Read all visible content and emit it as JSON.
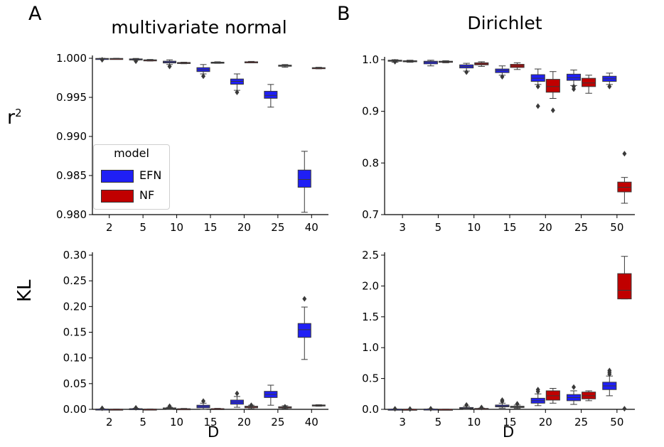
{
  "panel_labels": {
    "a": "A",
    "b": "B"
  },
  "column_titles": {
    "left": "multivariate normal",
    "right": "Dirichlet"
  },
  "row_labels": {
    "top": "r",
    "top_sup": "2",
    "bottom": "KL"
  },
  "x_label": "D",
  "legend": {
    "title": "model",
    "entries": [
      {
        "label": "EFN",
        "color": "#1f1ff5"
      },
      {
        "label": "NF",
        "color": "#c00000"
      }
    ]
  },
  "colors": {
    "efn": "#1f1ff5",
    "nf": "#c00000"
  },
  "chart_data": [
    {
      "id": "mvn_r2",
      "type": "box",
      "title": "multivariate normal",
      "xlabel": "",
      "ylabel": "r2",
      "categories": [
        "2",
        "5",
        "10",
        "15",
        "20",
        "25",
        "40"
      ],
      "ylim": [
        0.98,
        1.0
      ],
      "yticks": [
        0.98,
        0.985,
        0.99,
        0.995,
        1.0
      ],
      "ytick_labels": [
        "0.980",
        "0.985",
        "0.990",
        "0.995",
        "1.000"
      ],
      "series": [
        {
          "name": "EFN",
          "boxes": [
            {
              "cat": "2",
              "q1": 0.99993,
              "med": 0.99996,
              "q3": 0.99998,
              "lo": 0.99988,
              "hi": 1.0,
              "fliers": [
                0.99981
              ]
            },
            {
              "cat": "5",
              "q1": 0.99984,
              "med": 0.99988,
              "q3": 0.99992,
              "lo": 0.99975,
              "hi": 0.99998,
              "fliers": [
                0.99962
              ]
            },
            {
              "cat": "10",
              "q1": 0.9994,
              "med": 0.99952,
              "q3": 0.99963,
              "lo": 0.9992,
              "hi": 0.9998,
              "fliers": [
                0.99895
              ]
            },
            {
              "cat": "15",
              "q1": 0.9983,
              "med": 0.99855,
              "q3": 0.9988,
              "lo": 0.998,
              "hi": 0.9992,
              "fliers": [
                0.9977
              ]
            },
            {
              "cat": "20",
              "q1": 0.99668,
              "med": 0.99705,
              "q3": 0.99735,
              "lo": 0.9959,
              "hi": 0.998,
              "fliers": [
                0.99565
              ]
            },
            {
              "cat": "25",
              "q1": 0.99488,
              "med": 0.99525,
              "q3": 0.99578,
              "lo": 0.99375,
              "hi": 0.99665,
              "fliers": []
            },
            {
              "cat": "40",
              "q1": 0.9835,
              "med": 0.9845,
              "q3": 0.9857,
              "lo": 0.9803,
              "hi": 0.9881,
              "fliers": []
            }
          ]
        },
        {
          "name": "NF",
          "boxes": [
            {
              "cat": "2",
              "q1": 0.99994,
              "med": 0.99996,
              "q3": 0.99998,
              "lo": 0.9999,
              "hi": 1.0,
              "fliers": []
            },
            {
              "cat": "5",
              "q1": 0.99972,
              "med": 0.99976,
              "q3": 0.9998,
              "lo": 0.99965,
              "hi": 0.99985,
              "fliers": []
            },
            {
              "cat": "10",
              "q1": 0.99938,
              "med": 0.99942,
              "q3": 0.99946,
              "lo": 0.9993,
              "hi": 0.9995,
              "fliers": []
            },
            {
              "cat": "15",
              "q1": 0.99942,
              "med": 0.99946,
              "q3": 0.9995,
              "lo": 0.99935,
              "hi": 0.99955,
              "fliers": []
            },
            {
              "cat": "20",
              "q1": 0.99948,
              "med": 0.99952,
              "q3": 0.99955,
              "lo": 0.99943,
              "hi": 0.9996,
              "fliers": []
            },
            {
              "cat": "25",
              "q1": 0.99898,
              "med": 0.99905,
              "q3": 0.99912,
              "lo": 0.99885,
              "hi": 0.9992,
              "fliers": []
            },
            {
              "cat": "40",
              "q1": 0.99872,
              "med": 0.99876,
              "q3": 0.9988,
              "lo": 0.99865,
              "hi": 0.99885,
              "fliers": []
            }
          ]
        }
      ]
    },
    {
      "id": "dir_r2",
      "type": "box",
      "title": "Dirichlet",
      "xlabel": "",
      "ylabel": "",
      "categories": [
        "3",
        "5",
        "10",
        "15",
        "20",
        "25",
        "50"
      ],
      "ylim": [
        0.7,
        1.0
      ],
      "yticks": [
        0.7,
        0.8,
        0.9,
        1.0
      ],
      "ytick_labels": [
        "0.7",
        "0.8",
        "0.9",
        "1.0"
      ],
      "series": [
        {
          "name": "EFN",
          "boxes": [
            {
              "cat": "3",
              "q1": 0.997,
              "med": 0.998,
              "q3": 0.999,
              "lo": 0.995,
              "hi": 1.0,
              "fliers": [
                0.996
              ]
            },
            {
              "cat": "5",
              "q1": 0.992,
              "med": 0.995,
              "q3": 0.997,
              "lo": 0.988,
              "hi": 0.999,
              "fliers": []
            },
            {
              "cat": "10",
              "q1": 0.984,
              "med": 0.987,
              "q3": 0.99,
              "lo": 0.978,
              "hi": 0.993,
              "fliers": [
                0.976
              ]
            },
            {
              "cat": "15",
              "q1": 0.975,
              "med": 0.979,
              "q3": 0.982,
              "lo": 0.97,
              "hi": 0.988,
              "fliers": [
                0.967
              ]
            },
            {
              "cat": "20",
              "q1": 0.958,
              "med": 0.964,
              "q3": 0.971,
              "lo": 0.952,
              "hi": 0.982,
              "fliers": [
                0.948,
                0.91
              ]
            },
            {
              "cat": "25",
              "q1": 0.96,
              "med": 0.965,
              "q3": 0.972,
              "lo": 0.95,
              "hi": 0.98,
              "fliers": [
                0.948,
                0.943
              ]
            },
            {
              "cat": "50",
              "q1": 0.958,
              "med": 0.963,
              "q3": 0.968,
              "lo": 0.952,
              "hi": 0.974,
              "fliers": [
                0.948
              ]
            }
          ]
        },
        {
          "name": "NF",
          "boxes": [
            {
              "cat": "3",
              "q1": 0.996,
              "med": 0.997,
              "q3": 0.998,
              "lo": 0.995,
              "hi": 0.999,
              "fliers": []
            },
            {
              "cat": "5",
              "q1": 0.995,
              "med": 0.996,
              "q3": 0.997,
              "lo": 0.994,
              "hi": 0.998,
              "fliers": []
            },
            {
              "cat": "10",
              "q1": 0.99,
              "med": 0.992,
              "q3": 0.994,
              "lo": 0.987,
              "hi": 0.996,
              "fliers": []
            },
            {
              "cat": "15",
              "q1": 0.985,
              "med": 0.988,
              "q3": 0.991,
              "lo": 0.981,
              "hi": 0.994,
              "fliers": []
            },
            {
              "cat": "20",
              "q1": 0.937,
              "med": 0.948,
              "q3": 0.962,
              "lo": 0.925,
              "hi": 0.977,
              "fliers": [
                0.902
              ]
            },
            {
              "cat": "25",
              "q1": 0.948,
              "med": 0.955,
              "q3": 0.964,
              "lo": 0.935,
              "hi": 0.97,
              "fliers": []
            },
            {
              "cat": "50",
              "q1": 0.744,
              "med": 0.753,
              "q3": 0.763,
              "lo": 0.722,
              "hi": 0.772,
              "fliers": [
                0.818
              ]
            }
          ]
        }
      ]
    },
    {
      "id": "mvn_kl",
      "type": "box",
      "title": "",
      "xlabel": "D",
      "ylabel": "KL",
      "categories": [
        "2",
        "5",
        "10",
        "15",
        "20",
        "25",
        "40"
      ],
      "ylim": [
        0.0,
        0.3
      ],
      "yticks": [
        0.0,
        0.05,
        0.1,
        0.15,
        0.2,
        0.25,
        0.3
      ],
      "ytick_labels": [
        "0.00",
        "0.05",
        "0.10",
        "0.15",
        "0.20",
        "0.25",
        "0.30"
      ],
      "series": [
        {
          "name": "EFN",
          "boxes": [
            {
              "cat": "2",
              "q1": 0.0,
              "med": 0.0003,
              "q3": 0.0006,
              "lo": 0.0,
              "hi": 0.001,
              "fliers": [
                0.002
              ]
            },
            {
              "cat": "5",
              "q1": 0.0003,
              "med": 0.0008,
              "q3": 0.0013,
              "lo": 0.0,
              "hi": 0.002,
              "fliers": [
                0.003
              ]
            },
            {
              "cat": "10",
              "q1": 0.0013,
              "med": 0.002,
              "q3": 0.0028,
              "lo": 0.0,
              "hi": 0.004,
              "fliers": [
                0.006
              ]
            },
            {
              "cat": "15",
              "q1": 0.003,
              "med": 0.0055,
              "q3": 0.008,
              "lo": 0.0,
              "hi": 0.012,
              "fliers": [
                0.016
              ]
            },
            {
              "cat": "20",
              "q1": 0.01,
              "med": 0.014,
              "q3": 0.018,
              "lo": 0.004,
              "hi": 0.025,
              "fliers": [
                0.031
              ]
            },
            {
              "cat": "25",
              "q1": 0.023,
              "med": 0.029,
              "q3": 0.035,
              "lo": 0.008,
              "hi": 0.047,
              "fliers": []
            },
            {
              "cat": "40",
              "q1": 0.14,
              "med": 0.155,
              "q3": 0.167,
              "lo": 0.097,
              "hi": 0.199,
              "fliers": [
                0.215
              ]
            }
          ]
        },
        {
          "name": "NF",
          "boxes": [
            {
              "cat": "2",
              "q1": 0.0,
              "med": 0.0002,
              "q3": 0.0004,
              "lo": 0.0,
              "hi": 0.0006,
              "fliers": []
            },
            {
              "cat": "5",
              "q1": 0.0001,
              "med": 0.0003,
              "q3": 0.0005,
              "lo": 0.0,
              "hi": 0.0008,
              "fliers": []
            },
            {
              "cat": "10",
              "q1": 0.0004,
              "med": 0.0008,
              "q3": 0.0012,
              "lo": 0.0,
              "hi": 0.0018,
              "fliers": []
            },
            {
              "cat": "15",
              "q1": 0.0006,
              "med": 0.001,
              "q3": 0.0014,
              "lo": 0.0,
              "hi": 0.002,
              "fliers": []
            },
            {
              "cat": "20",
              "q1": 0.003,
              "med": 0.0045,
              "q3": 0.006,
              "lo": 0.001,
              "hi": 0.008,
              "fliers": [
                0.008
              ]
            },
            {
              "cat": "25",
              "q1": 0.0025,
              "med": 0.004,
              "q3": 0.005,
              "lo": 0.001,
              "hi": 0.007,
              "fliers": [
                0.005
              ]
            },
            {
              "cat": "40",
              "q1": 0.0065,
              "med": 0.0075,
              "q3": 0.0085,
              "lo": 0.006,
              "hi": 0.009,
              "fliers": []
            }
          ]
        }
      ]
    },
    {
      "id": "dir_kl",
      "type": "box",
      "title": "",
      "xlabel": "D",
      "ylabel": "",
      "categories": [
        "3",
        "5",
        "10",
        "15",
        "20",
        "25",
        "50"
      ],
      "ylim": [
        0.0,
        2.5
      ],
      "yticks": [
        0.0,
        0.5,
        1.0,
        1.5,
        2.0,
        2.5
      ],
      "ytick_labels": [
        "0.0",
        "0.5",
        "1.0",
        "1.5",
        "2.0",
        "2.5"
      ],
      "series": [
        {
          "name": "EFN",
          "boxes": [
            {
              "cat": "3",
              "q1": 0.0,
              "med": 0.001,
              "q3": 0.003,
              "lo": 0.0,
              "hi": 0.005,
              "fliers": [
                0.008
              ]
            },
            {
              "cat": "5",
              "q1": 0.001,
              "med": 0.003,
              "q3": 0.005,
              "lo": 0.0,
              "hi": 0.008,
              "fliers": [
                0.01
              ]
            },
            {
              "cat": "10",
              "q1": 0.01,
              "med": 0.02,
              "q3": 0.03,
              "lo": 0.0,
              "hi": 0.05,
              "fliers": [
                0.07
              ]
            },
            {
              "cat": "15",
              "q1": 0.04,
              "med": 0.055,
              "q3": 0.07,
              "lo": 0.02,
              "hi": 0.1,
              "fliers": [
                0.13,
                0.15
              ]
            },
            {
              "cat": "20",
              "q1": 0.1,
              "med": 0.14,
              "q3": 0.18,
              "lo": 0.06,
              "hi": 0.25,
              "fliers": [
                0.29,
                0.32
              ]
            },
            {
              "cat": "25",
              "q1": 0.14,
              "med": 0.19,
              "q3": 0.24,
              "lo": 0.08,
              "hi": 0.3,
              "fliers": [
                0.36
              ]
            },
            {
              "cat": "50",
              "q1": 0.32,
              "med": 0.38,
              "q3": 0.44,
              "lo": 0.22,
              "hi": 0.54,
              "fliers": [
                0.57,
                0.6,
                0.63
              ]
            }
          ]
        },
        {
          "name": "NF",
          "boxes": [
            {
              "cat": "3",
              "q1": 0.0,
              "med": 0.001,
              "q3": 0.002,
              "lo": 0.0,
              "hi": 0.004,
              "fliers": [
                0.006
              ]
            },
            {
              "cat": "5",
              "q1": 0.0,
              "med": 0.001,
              "q3": 0.002,
              "lo": 0.0,
              "hi": 0.003,
              "fliers": []
            },
            {
              "cat": "10",
              "q1": 0.005,
              "med": 0.01,
              "q3": 0.015,
              "lo": 0.0,
              "hi": 0.02,
              "fliers": [
                0.03
              ]
            },
            {
              "cat": "15",
              "q1": 0.03,
              "med": 0.04,
              "q3": 0.05,
              "lo": 0.015,
              "hi": 0.07,
              "fliers": [
                0.09
              ]
            },
            {
              "cat": "20",
              "q1": 0.15,
              "med": 0.22,
              "q3": 0.3,
              "lo": 0.1,
              "hi": 0.34,
              "fliers": []
            },
            {
              "cat": "25",
              "q1": 0.17,
              "med": 0.22,
              "q3": 0.28,
              "lo": 0.14,
              "hi": 0.3,
              "fliers": []
            },
            {
              "cat": "50",
              "q1": 1.79,
              "med": 1.93,
              "q3": 2.2,
              "lo": 1.79,
              "hi": 2.48,
              "fliers": [
                0.01
              ]
            }
          ]
        }
      ]
    }
  ]
}
